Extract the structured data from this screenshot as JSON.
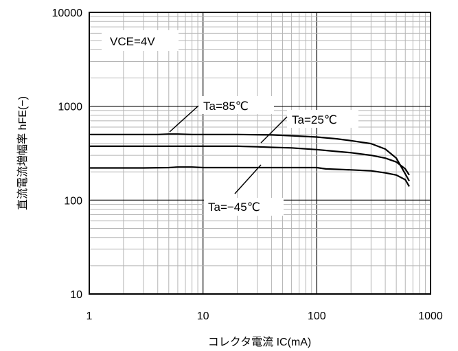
{
  "chart_data": {
    "type": "line",
    "title": "",
    "xlabel": "コレクタ電流 IC(mA)",
    "ylabel": "直流電流増幅率 hFE(−)",
    "x_scale": "log",
    "y_scale": "log",
    "xlim": [
      1,
      1000
    ],
    "ylim": [
      10,
      10000
    ],
    "x_ticks": [
      "1",
      "10",
      "100",
      "1000"
    ],
    "y_ticks": [
      "10",
      "100",
      "1000",
      "10000"
    ],
    "grid": true,
    "annotations": [
      {
        "id": "cond",
        "text": "VCE=4V"
      }
    ],
    "series": [
      {
        "name": "Ta=85℃",
        "x": [
          1,
          3,
          4,
          5,
          6,
          8,
          10,
          20,
          40,
          60,
          100,
          150,
          200,
          300,
          400,
          500,
          600,
          650
        ],
        "y": [
          500,
          500,
          500,
          505,
          505,
          500,
          500,
          500,
          495,
          485,
          470,
          450,
          430,
          400,
          350,
          280,
          190,
          160
        ]
      },
      {
        "name": "Ta=25℃",
        "x": [
          1,
          5,
          10,
          20,
          30,
          40,
          60,
          100,
          150,
          200,
          300,
          400,
          500,
          600,
          650
        ],
        "y": [
          375,
          375,
          375,
          375,
          370,
          365,
          360,
          345,
          330,
          320,
          300,
          280,
          255,
          215,
          185
        ]
      },
      {
        "name": "Ta=−45℃",
        "x": [
          1,
          3,
          5,
          6,
          8,
          10,
          20,
          50,
          100,
          120,
          200,
          300,
          400,
          500,
          600,
          650
        ],
        "y": [
          220,
          220,
          222,
          225,
          225,
          222,
          222,
          222,
          222,
          215,
          210,
          205,
          195,
          185,
          165,
          140
        ]
      }
    ]
  }
}
